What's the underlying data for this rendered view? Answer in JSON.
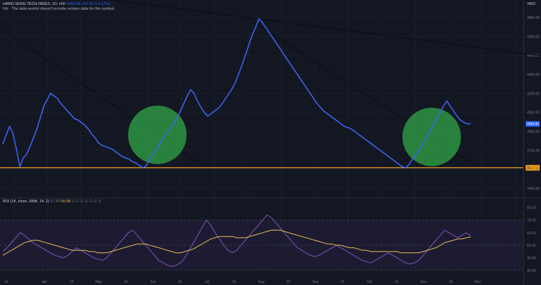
{
  "legend": {
    "symbol": "HANG SENG TECH INDEX, 1D, HSI",
    "value": "3958.86",
    "change": "+66.56 (+1.67%)",
    "vol_note": "Vol · The data vendor doesn't provide volume data for this symbol.",
    "rsi_title": "RSI (14, close, SMA, 14, 2)",
    "rsi_value": "57.43",
    "rsi_ma_value": "56.58",
    "rsi_extra": "∅  ∅  ∅  ∅  ∅  ∅  ∅"
  },
  "currency": "HKD",
  "colors": {
    "background": "#131722",
    "price_line": "#3d63f0",
    "trendline": "#0b0d12",
    "support": "#f5a623",
    "circle": "#2e9e46",
    "rsi_line": "#7e57c2",
    "rsi_ma": "#e8c15a",
    "rsi_band": "#1f1c33"
  },
  "tags": {
    "last_price": "3958.86",
    "support_price": "3612.11"
  },
  "chart_data": [
    {
      "type": "line",
      "title": "HANG SENG TECH INDEX, 1D, HSI",
      "x_ticks": [
        "Apr",
        "15",
        "May",
        "15",
        "Jun",
        "15",
        "Jul",
        "15",
        "Aug",
        "15",
        "Sep",
        "15",
        "Oct",
        "15",
        "Nov",
        "15",
        "Dec"
      ],
      "y_ticks": [
        "4800.00",
        "4650.00",
        "4500.00",
        "4350.00",
        "4200.00",
        "4050.00",
        "3900.00",
        "3750.00",
        "3600.00",
        "3450.00"
      ],
      "ylim": [
        3400,
        4850
      ],
      "series": [
        {
          "values": [
            3800,
            3870,
            3940,
            3880,
            3760,
            3620,
            3690,
            3720,
            3780,
            3850,
            3920,
            4010,
            4100,
            4150,
            4200,
            4180,
            4160,
            4120,
            4090,
            4060,
            4030,
            4000,
            3990,
            3970,
            3950,
            3920,
            3880,
            3850,
            3810,
            3790,
            3780,
            3770,
            3760,
            3740,
            3720,
            3700,
            3690,
            3680,
            3660,
            3650,
            3630,
            3612,
            3630,
            3680,
            3720,
            3760,
            3800,
            3850,
            3880,
            3920,
            3960,
            4000,
            4060,
            4120,
            4180,
            4230,
            4200,
            4140,
            4090,
            4050,
            4020,
            4040,
            4060,
            4080,
            4110,
            4150,
            4190,
            4230,
            4280,
            4350,
            4420,
            4500,
            4580,
            4660,
            4720,
            4790,
            4760,
            4720,
            4680,
            4640,
            4600,
            4560,
            4520,
            4480,
            4440,
            4400,
            4360,
            4320,
            4280,
            4240,
            4200,
            4160,
            4120,
            4090,
            4060,
            4040,
            4020,
            4000,
            3980,
            3960,
            3940,
            3930,
            3920,
            3900,
            3880,
            3860,
            3840,
            3820,
            3800,
            3780,
            3760,
            3740,
            3720,
            3700,
            3680,
            3660,
            3640,
            3620,
            3612,
            3640,
            3680,
            3720,
            3760,
            3800,
            3850,
            3900,
            3950,
            4000,
            4050,
            4100,
            4140,
            4100,
            4060,
            4020,
            3990,
            3970,
            3960,
            3958.86
          ]
        }
      ]
    },
    {
      "type": "line",
      "title": "RSI (14, close, SMA, 14, 2)",
      "y_ticks": [
        "80.00",
        "70.00",
        "60.00",
        "50.00",
        "40.00",
        "30.00"
      ],
      "ylim": [
        25,
        82
      ],
      "series": [
        {
          "name": "RSI",
          "values": [
            45,
            48,
            52,
            56,
            60,
            58,
            55,
            52,
            50,
            48,
            46,
            44,
            42,
            41,
            40,
            42,
            45,
            48,
            46,
            44,
            42,
            40,
            39,
            38,
            40,
            44,
            48,
            52,
            56,
            60,
            62,
            58,
            54,
            50,
            46,
            42,
            38,
            36,
            34,
            33,
            34,
            36,
            40,
            46,
            52,
            58,
            64,
            70,
            66,
            60,
            55,
            50,
            46,
            44,
            46,
            50,
            54,
            58,
            62,
            66,
            70,
            74,
            72,
            68,
            64,
            60,
            56,
            52,
            48,
            46,
            44,
            42,
            41,
            42,
            44,
            46,
            48,
            50,
            48,
            46,
            44,
            42,
            40,
            38,
            37,
            36,
            38,
            40,
            42,
            44,
            42,
            40,
            38,
            36,
            35,
            36,
            38,
            42,
            46,
            50,
            54,
            58,
            62,
            60,
            58,
            56,
            58,
            60,
            57.43
          ]
        },
        {
          "name": "RSI-based MA",
          "values": [
            42,
            44,
            46,
            48,
            50,
            52,
            53,
            54,
            54,
            53,
            52,
            51,
            50,
            49,
            48,
            47,
            46,
            46,
            46,
            46,
            45,
            45,
            44,
            44,
            44,
            45,
            46,
            47,
            48,
            49,
            50,
            51,
            51,
            51,
            50,
            49,
            48,
            47,
            46,
            45,
            44,
            44,
            45,
            46,
            47,
            49,
            51,
            53,
            55,
            56,
            57,
            57,
            57,
            57,
            56,
            56,
            56,
            57,
            58,
            59,
            60,
            61,
            62,
            62,
            62,
            61,
            60,
            59,
            58,
            57,
            56,
            55,
            54,
            53,
            52,
            51,
            51,
            50,
            50,
            49,
            48,
            48,
            47,
            46,
            46,
            45,
            45,
            45,
            45,
            45,
            45,
            45,
            44,
            44,
            44,
            44,
            44,
            45,
            46,
            47,
            48,
            50,
            52,
            53,
            54,
            55,
            55,
            56,
            56.58
          ]
        }
      ]
    }
  ]
}
